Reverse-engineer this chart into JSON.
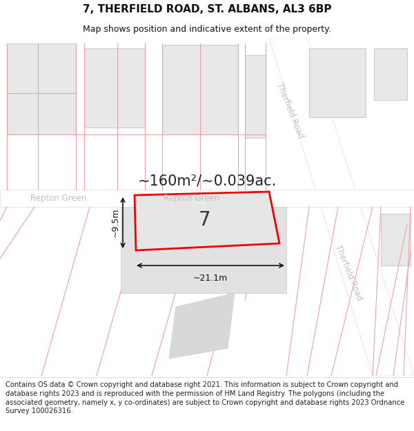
{
  "title": "7, THERFIELD ROAD, ST. ALBANS, AL3 6BP",
  "subtitle": "Map shows position and indicative extent of the property.",
  "area_label": "~160m²/~0.039ac.",
  "width_label": "~21.1m",
  "height_label": "~9.5m",
  "property_number": "7",
  "footer": "Contains OS data © Crown copyright and database right 2021. This information is subject to Crown copyright and database rights 2023 and is reproduced with the permission of HM Land Registry. The polygons (including the associated geometry, namely x, y co-ordinates) are subject to Crown copyright and database rights 2023 Ordnance Survey 100026316.",
  "bg_color": "#f2f2f2",
  "road_color": "#ffffff",
  "building_fill": "#e8e8e8",
  "building_stroke": "#cccccc",
  "property_fill": "#e6e6e6",
  "property_stroke": "#ee0000",
  "parcel_fill": "#e2e2e2",
  "parcel_stroke": "#cccccc",
  "pink": "#f0a0a0",
  "road_label_color": "#c0c0c0",
  "title_fontsize": 11,
  "subtitle_fontsize": 9,
  "footer_fontsize": 7.2,
  "number_fontsize": 20,
  "area_fontsize": 15,
  "dim_fontsize": 9,
  "road_label_fontsize": 8.5
}
